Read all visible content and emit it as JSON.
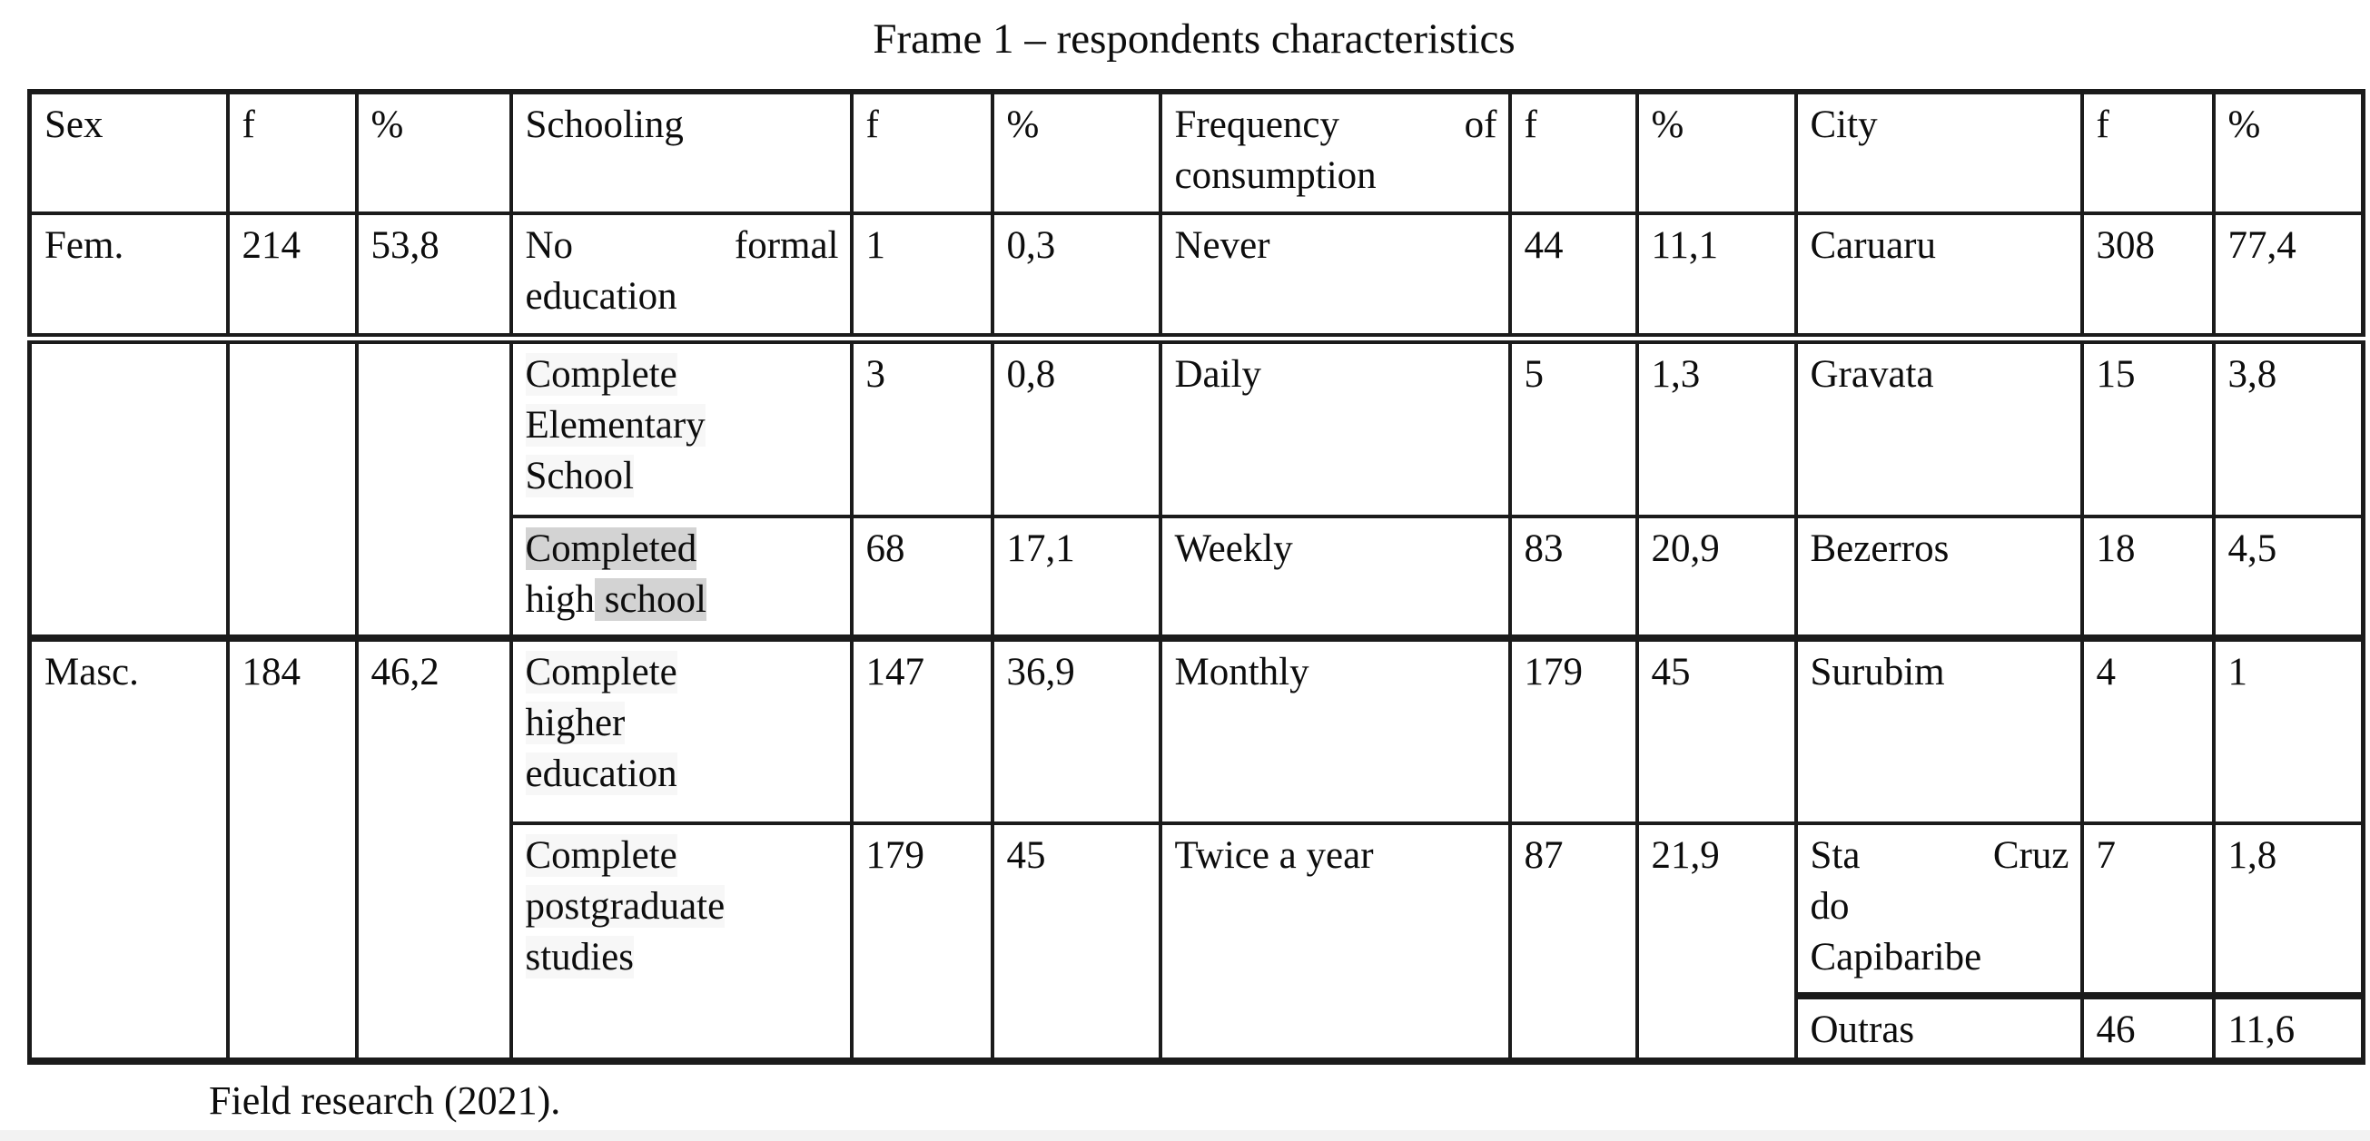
{
  "title": "Frame 1 – respondents characteristics",
  "source_note": "Field research (2021).",
  "colors": {
    "text": "#0d0d0d",
    "border": "#1b1b1b",
    "highlight_gray": "#d3d3d3",
    "highlight_faint": "#f7f7f7",
    "page_edge": "#f2f2f2"
  },
  "table": {
    "headers": {
      "sex": "Sex",
      "f": "f",
      "percent": "%",
      "schooling": "Schooling",
      "frequency_lines": [
        {
          "j": true,
          "segs": [
            {
              "t": "Frequency"
            },
            {
              "t": "of"
            }
          ]
        },
        {
          "segs": [
            {
              "t": "consumption"
            }
          ]
        }
      ],
      "frequency_text": "Frequency of consumption",
      "city": "City"
    },
    "sex": {
      "fem": {
        "label": "Fem.",
        "f": "214",
        "pct": "53,8"
      },
      "masc": {
        "label": "Masc.",
        "f": "184",
        "pct": "46,2"
      }
    },
    "schooling": {
      "none": {
        "text": "No formal education",
        "lines": [
          {
            "j": true,
            "segs": [
              {
                "t": "No"
              },
              {
                "t": "formal"
              }
            ]
          },
          {
            "segs": [
              {
                "t": "education"
              }
            ]
          }
        ],
        "f": "1",
        "pct": "0,3"
      },
      "elementary": {
        "text": "Complete Elementary School",
        "lines": [
          {
            "segs": [
              {
                "t": "Complete",
                "h": "faint"
              }
            ]
          },
          {
            "segs": [
              {
                "t": "Elementary",
                "h": "faint"
              }
            ]
          },
          {
            "segs": [
              {
                "t": "School",
                "h": "faint"
              }
            ]
          }
        ],
        "f": "3",
        "pct": "0,8"
      },
      "highschool": {
        "text": "Completed high school",
        "lines": [
          {
            "segs": [
              {
                "t": "Completed",
                "h": "gray"
              }
            ]
          },
          {
            "segs": [
              {
                "t": "high"
              },
              {
                "t": " school",
                "h": "gray"
              }
            ]
          }
        ],
        "f": "68",
        "pct": "17,1"
      },
      "higher": {
        "text": "Complete higher education",
        "lines": [
          {
            "segs": [
              {
                "t": "Complete",
                "h": "faint"
              }
            ]
          },
          {
            "segs": [
              {
                "t": "higher",
                "h": "faint"
              }
            ]
          },
          {
            "segs": [
              {
                "t": "education",
                "h": "faint"
              }
            ]
          }
        ],
        "f": "147",
        "pct": "36,9"
      },
      "postgrad": {
        "text": "Complete postgraduate studies",
        "lines": [
          {
            "segs": [
              {
                "t": "Complete",
                "h": "faint"
              }
            ]
          },
          {
            "segs": [
              {
                "t": "postgraduate",
                "h": "faint"
              }
            ]
          },
          {
            "segs": [
              {
                "t": "studies",
                "h": "faint"
              }
            ]
          }
        ],
        "f": "179",
        "pct": "45"
      }
    },
    "frequency": {
      "never": {
        "label": "Never",
        "f": "44",
        "pct": "11,1"
      },
      "daily": {
        "label": "Daily",
        "f": "5",
        "pct": "1,3"
      },
      "weekly": {
        "label": "Weekly",
        "f": "83",
        "pct": "20,9"
      },
      "monthly": {
        "label": "Monthly",
        "f": "179",
        "pct": "45"
      },
      "twice": {
        "label": "Twice a year",
        "f": "87",
        "pct": "21,9"
      }
    },
    "city": {
      "caruaru": {
        "label": "Caruaru",
        "f": "308",
        "pct": "77,4"
      },
      "gravata": {
        "label": "Gravata",
        "f": "15",
        "pct": "3,8"
      },
      "bezerros": {
        "label": "Bezerros",
        "f": "18",
        "pct": "4,5"
      },
      "surubim": {
        "label": "Surubim",
        "f": "4",
        "pct": "1"
      },
      "stacruz": {
        "text": "Sta Cruz do Capibaribe",
        "lines": [
          {
            "j": true,
            "segs": [
              {
                "t": "Sta"
              },
              {
                "t": "Cruz"
              }
            ]
          },
          {
            "segs": [
              {
                "t": "do"
              }
            ]
          },
          {
            "segs": [
              {
                "t": "Capibaribe"
              }
            ]
          }
        ],
        "f": "7",
        "pct": "1,8"
      },
      "outras": {
        "label": "Outras",
        "f": "46",
        "pct": "11,6"
      }
    }
  }
}
